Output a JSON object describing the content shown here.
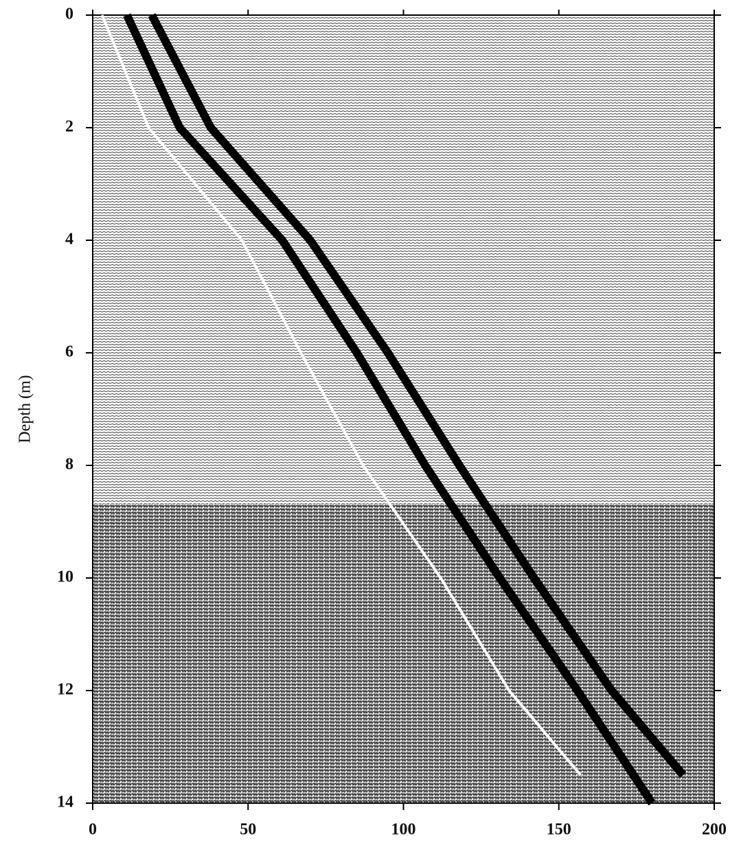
{
  "chart_data": {
    "type": "line",
    "y_label": "Depth (m)",
    "xlim": [
      0,
      200
    ],
    "xticks": [
      0,
      50,
      100,
      150,
      200
    ],
    "ylim": [
      14,
      0
    ],
    "yticks": [
      0,
      2,
      4,
      6,
      8,
      10,
      12,
      14
    ],
    "series": [
      {
        "color": "#ffffff",
        "x": [
          3,
          18,
          48,
          67,
          87,
          112,
          134,
          157
        ],
        "values": [
          0,
          2,
          4,
          6,
          8,
          10,
          12,
          13.5
        ]
      },
      {
        "color": "#000000",
        "x": [
          11,
          28,
          61,
          85,
          107,
          131,
          156,
          180
        ],
        "values": [
          0,
          2,
          4,
          6,
          8,
          10,
          12,
          14
        ]
      },
      {
        "color": "#000000",
        "x": [
          19,
          38,
          70,
          95,
          118,
          142,
          167,
          190
        ],
        "values": [
          0,
          2,
          4,
          6,
          8,
          10,
          12,
          13.5
        ]
      }
    ]
  }
}
